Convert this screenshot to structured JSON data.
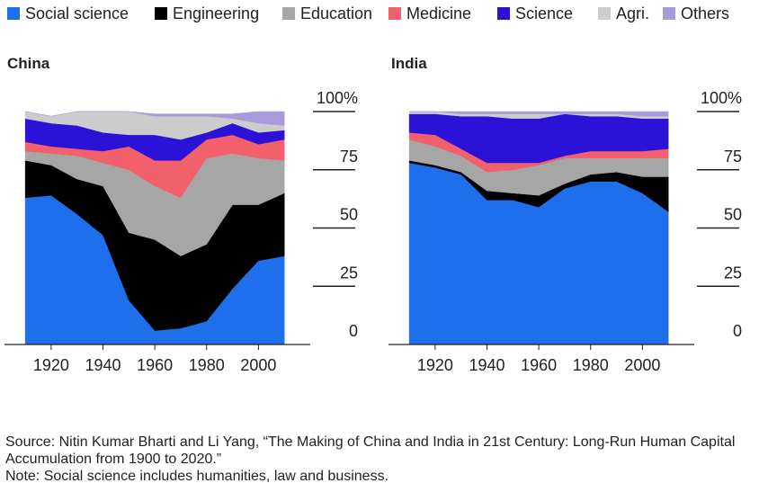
{
  "chart_data": [
    {
      "type": "area",
      "stacked": true,
      "title": "China",
      "x": [
        1910,
        1920,
        1930,
        1940,
        1950,
        1960,
        1970,
        1980,
        1990,
        2000,
        2010
      ],
      "xlim": [
        1902,
        2020
      ],
      "xticks": [
        1920,
        1940,
        1960,
        1980,
        2000
      ],
      "ylim": [
        0,
        100
      ],
      "yticks": [
        0,
        25,
        50,
        75,
        {
          "value": 100,
          "label": "100%"
        }
      ],
      "series": [
        {
          "name": "Social science",
          "color": "#1f6fec",
          "values": [
            63,
            64,
            56,
            47,
            19,
            6,
            7,
            10,
            24,
            36,
            38
          ]
        },
        {
          "name": "Engineering",
          "color": "#000000",
          "values": [
            16,
            13,
            15,
            21,
            29,
            39,
            31,
            33,
            36,
            24,
            27
          ]
        },
        {
          "name": "Education",
          "color": "#a6a6a6",
          "values": [
            4,
            5,
            10,
            10,
            27,
            23,
            25,
            37,
            22,
            20,
            14
          ]
        },
        {
          "name": "Medicine",
          "color": "#f2616b",
          "values": [
            4,
            3,
            3,
            5,
            10,
            11,
            16,
            8,
            8,
            6,
            9
          ]
        },
        {
          "name": "Science",
          "color": "#2b12d6",
          "values": [
            10,
            10,
            10,
            8,
            5,
            11,
            9,
            3,
            5,
            5,
            4
          ]
        },
        {
          "name": "Agri.",
          "color": "#cccccc",
          "values": [
            3,
            3,
            6,
            9,
            10,
            8,
            10,
            7,
            2,
            4,
            2
          ]
        },
        {
          "name": "Others",
          "color": "#a99bd9",
          "values": [
            0,
            0,
            0,
            0,
            0,
            1,
            1,
            1,
            2,
            5,
            6
          ]
        }
      ]
    },
    {
      "type": "area",
      "stacked": true,
      "title": "India",
      "x": [
        1910,
        1920,
        1930,
        1940,
        1950,
        1960,
        1970,
        1980,
        1990,
        2000,
        2010
      ],
      "xlim": [
        1902,
        2020
      ],
      "xticks": [
        1920,
        1940,
        1960,
        1980,
        2000
      ],
      "ylim": [
        0,
        100
      ],
      "yticks": [
        0,
        25,
        50,
        75,
        {
          "value": 100,
          "label": "100%"
        }
      ],
      "series": [
        {
          "name": "Social science",
          "color": "#1f6fec",
          "values": [
            78,
            76,
            73,
            62,
            62,
            59,
            67,
            70,
            70,
            65,
            57
          ]
        },
        {
          "name": "Engineering",
          "color": "#000000",
          "values": [
            1,
            1,
            1,
            4,
            3,
            5,
            2,
            3,
            4,
            7,
            15
          ]
        },
        {
          "name": "Education",
          "color": "#a6a6a6",
          "values": [
            9,
            8,
            7,
            8,
            10,
            13,
            11,
            7,
            6,
            8,
            8
          ]
        },
        {
          "name": "Medicine",
          "color": "#f2616b",
          "values": [
            3,
            5,
            3,
            4,
            3,
            1,
            1,
            3,
            3,
            3,
            4
          ]
        },
        {
          "name": "Science",
          "color": "#2b12d6",
          "values": [
            8,
            9,
            14,
            20,
            19,
            19,
            18,
            15,
            15,
            14,
            13
          ]
        },
        {
          "name": "Agri.",
          "color": "#cccccc",
          "values": [
            1,
            1,
            1,
            1,
            2,
            2,
            0,
            1,
            1,
            1,
            1
          ]
        },
        {
          "name": "Others",
          "color": "#a99bd9",
          "values": [
            0,
            0,
            1,
            1,
            1,
            1,
            1,
            1,
            1,
            2,
            2
          ]
        }
      ]
    }
  ],
  "source": "Source: Nitin Kumar Bharti and Li Yang, “The Making of China and India in 21st Century: Long-Run Human Capital Accumulation from 1900 to 2020.”",
  "note": "Note: Social science includes humanities, law and business."
}
